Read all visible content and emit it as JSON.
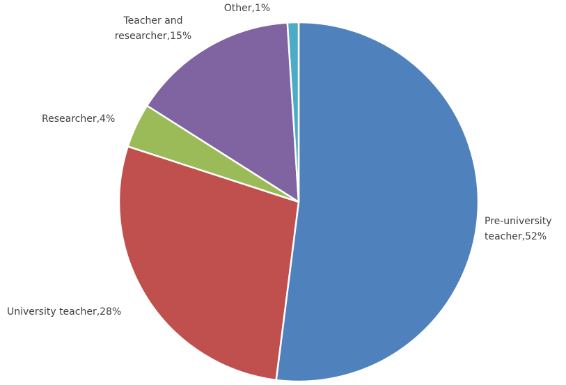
{
  "chart_data": {
    "type": "pie",
    "title": "",
    "legend": "none",
    "slices": [
      {
        "label": "Pre-university teacher",
        "value": 52,
        "display": [
          "Pre-university",
          "teacher,52%"
        ],
        "color": "#4f81bd"
      },
      {
        "label": "University teacher",
        "value": 28,
        "display": [
          "University teacher,28%"
        ],
        "color": "#c0504d"
      },
      {
        "label": "Researcher",
        "value": 4,
        "display": [
          "Researcher,4%"
        ],
        "color": "#9bbb59"
      },
      {
        "label": "Teacher and researcher",
        "value": 15,
        "display": [
          "Teacher and",
          "researcher,15%"
        ],
        "color": "#8064a2"
      },
      {
        "label": "Other",
        "value": 1,
        "display": [
          "Other,1%"
        ],
        "color": "#4bacc6"
      }
    ]
  }
}
